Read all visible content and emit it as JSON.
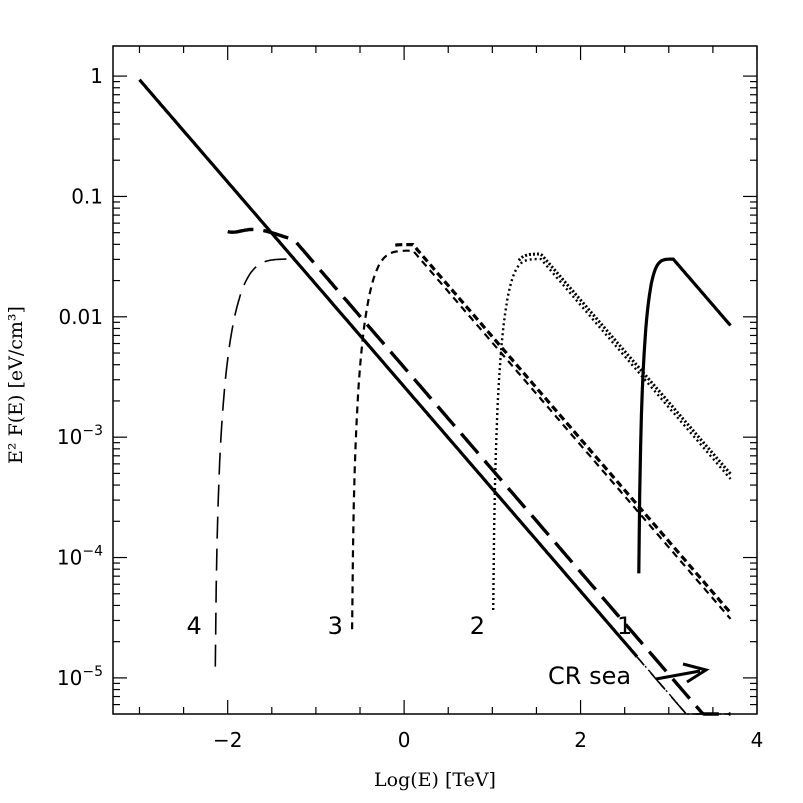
{
  "chart_data": {
    "type": "line",
    "title": "",
    "xlabel": "Log(E)  [TeV]",
    "ylabel": "E² F(E)  [eV/cm³]",
    "xlim": [
      -3.3,
      4.0
    ],
    "ylim_log10": [
      -5.3,
      0.25
    ],
    "x_ticks": [
      {
        "value": -2,
        "label": "−2"
      },
      {
        "value": 0,
        "label": "0"
      },
      {
        "value": 2,
        "label": "2"
      },
      {
        "value": 4,
        "label": "4"
      }
    ],
    "y_ticks": [
      {
        "exp": 0,
        "label": "1"
      },
      {
        "exp": -1,
        "label": "0.1"
      },
      {
        "exp": -2,
        "label": "0.01"
      },
      {
        "exp": -3,
        "label": "10",
        "sup": "−3"
      },
      {
        "exp": -4,
        "label": "10",
        "sup": "−4"
      },
      {
        "exp": -5,
        "label": "10",
        "sup": "−5"
      }
    ],
    "cr_sea": {
      "slope_log10": -0.85,
      "x_start": -3.0,
      "x_end": 3.7,
      "log_y_start": -0.03
    },
    "series": [
      {
        "name": "1",
        "x_cut": 2.65,
        "log_peak": -1.52,
        "x_peak": 3.05,
        "width": 0.1
      },
      {
        "name": "2",
        "x_cut": 1.0,
        "log_peak": -1.52,
        "x_peak": 1.55,
        "width": 0.1
      },
      {
        "name": "3",
        "x_cut": -0.6,
        "log_peak": -1.45,
        "x_peak": 0.1,
        "width": 0.1
      },
      {
        "name": "4",
        "x_cut": -2.15,
        "log_peak": -1.52,
        "x_peak": -1.25,
        "width": 0.1
      }
    ],
    "labels": [
      "4",
      "3",
      "2",
      "1"
    ],
    "annotation": "CR sea"
  }
}
